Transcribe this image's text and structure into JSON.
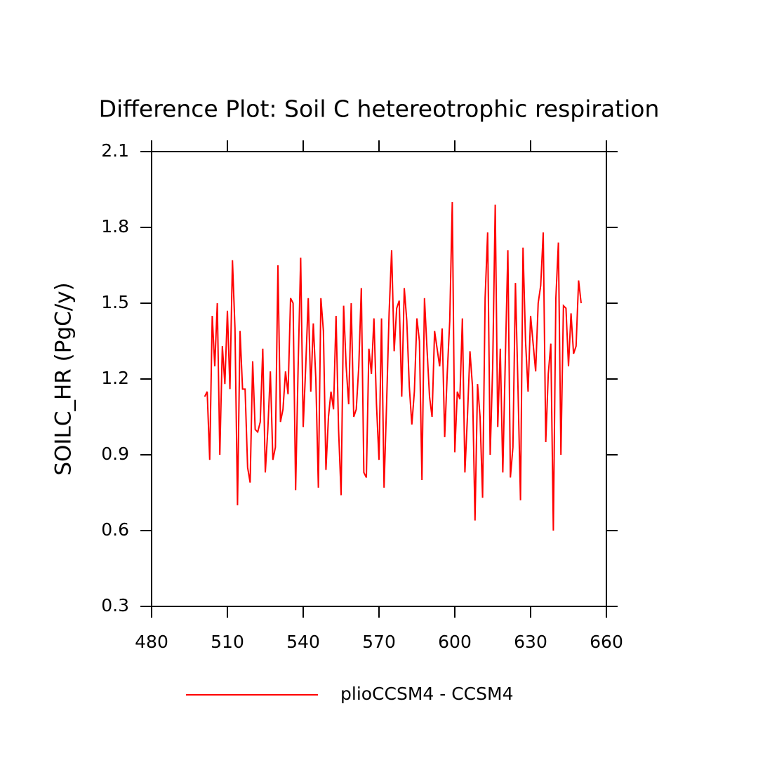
{
  "chart_data": {
    "type": "line",
    "title": "Difference Plot: Soil C hetereotrophic respiration",
    "y_label": "SOILC_HR  (PgC/y)",
    "x": [
      501,
      502,
      503,
      504,
      505,
      506,
      507,
      508,
      509,
      510,
      511,
      512,
      513,
      514,
      515,
      516,
      517,
      518,
      519,
      520,
      521,
      522,
      523,
      524,
      525,
      526,
      527,
      528,
      529,
      530,
      531,
      532,
      533,
      534,
      535,
      536,
      537,
      538,
      539,
      540,
      541,
      542,
      543,
      544,
      545,
      546,
      547,
      548,
      549,
      550,
      551,
      552,
      553,
      554,
      555,
      556,
      557,
      558,
      559,
      560,
      561,
      562,
      563,
      564,
      565,
      566,
      567,
      568,
      569,
      570,
      571,
      572,
      573,
      574,
      575,
      576,
      577,
      578,
      579,
      580,
      581,
      582,
      583,
      584,
      585,
      586,
      587,
      588,
      589,
      590,
      591,
      592,
      593,
      594,
      595,
      596,
      597,
      598,
      599,
      600,
      601,
      602,
      603,
      604,
      605,
      606,
      607,
      608,
      609,
      610,
      611,
      612,
      613,
      614,
      615,
      616,
      617,
      618,
      619,
      620,
      621,
      622,
      623,
      624,
      625,
      626,
      627,
      628,
      629,
      630,
      631,
      632,
      633,
      634,
      635,
      636,
      637,
      638,
      639,
      640,
      641,
      642,
      643,
      644,
      645,
      646,
      647,
      648,
      649,
      650
    ],
    "series": [
      {
        "name": "plioCCSM4 - CCSM4",
        "color": "#ff0000",
        "values": [
          1.13,
          1.15,
          0.88,
          1.45,
          1.25,
          1.5,
          0.9,
          1.33,
          1.18,
          1.47,
          1.16,
          1.67,
          1.4,
          0.7,
          1.39,
          1.16,
          1.16,
          0.85,
          0.79,
          1.27,
          1.0,
          0.99,
          1.03,
          1.32,
          0.83,
          1.0,
          1.23,
          0.88,
          0.93,
          1.65,
          1.03,
          1.08,
          1.23,
          1.14,
          1.52,
          1.5,
          0.76,
          1.25,
          1.68,
          1.01,
          1.25,
          1.52,
          1.15,
          1.42,
          1.2,
          0.77,
          1.52,
          1.39,
          0.84,
          1.05,
          1.15,
          1.08,
          1.45,
          1.0,
          0.74,
          1.49,
          1.25,
          1.1,
          1.5,
          1.05,
          1.08,
          1.25,
          1.56,
          0.83,
          0.81,
          1.32,
          1.22,
          1.44,
          1.1,
          0.88,
          1.44,
          0.77,
          1.1,
          1.46,
          1.71,
          1.31,
          1.48,
          1.51,
          1.13,
          1.56,
          1.43,
          1.17,
          1.02,
          1.15,
          1.44,
          1.35,
          0.8,
          1.52,
          1.32,
          1.13,
          1.05,
          1.39,
          1.32,
          1.25,
          1.4,
          0.97,
          1.22,
          1.43,
          1.9,
          0.91,
          1.15,
          1.12,
          1.44,
          0.83,
          1.05,
          1.31,
          1.17,
          0.64,
          1.18,
          1.05,
          0.73,
          1.52,
          1.78,
          0.9,
          1.25,
          1.89,
          1.01,
          1.32,
          0.83,
          1.28,
          1.71,
          0.81,
          0.93,
          1.58,
          1.17,
          0.72,
          1.72,
          1.35,
          1.15,
          1.45,
          1.34,
          1.23,
          1.5,
          1.57,
          1.78,
          0.95,
          1.22,
          1.34,
          0.6,
          1.52,
          1.74,
          0.9,
          1.49,
          1.48,
          1.25,
          1.46,
          1.3,
          1.33,
          1.59,
          1.5
        ]
      }
    ],
    "xlim": [
      480,
      660
    ],
    "xticks": [
      480,
      510,
      540,
      570,
      600,
      630,
      660
    ],
    "ylim": [
      0.3,
      2.1
    ],
    "yticks": [
      0.3,
      0.6,
      0.9,
      1.2,
      1.5,
      1.8,
      2.1
    ],
    "grid": false,
    "legend": "bottom"
  }
}
